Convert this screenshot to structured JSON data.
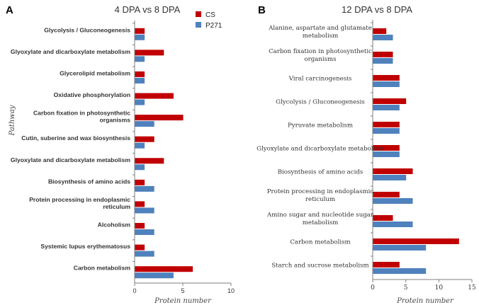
{
  "chart_data": [
    {
      "panel_label": "A",
      "type": "bar",
      "orientation": "horizontal",
      "title": "4 DPA vs 8 DPA",
      "xlabel": "Protein number",
      "ylabel": "Pathway",
      "xlim": [
        0,
        10
      ],
      "xticks": [
        0,
        5,
        10
      ],
      "legend_placement": "top-right",
      "categories": [
        "Glycolysis / Gluconeogenesis",
        "Glyoxylate and dicarboxylate metabolism",
        "Glycerolipid metabolism",
        "Oxidative phosphorylation",
        "Carbon fixation in photosynthetic organisms",
        "Cutin, suberine and wax biosynthesis",
        "Glyoxylate and dicarboxylate metabolism",
        "Biosynthesis of amino acids",
        "Protein processing in endoplasmic reticulum",
        "Alcoholism",
        "Systemic lupus erythematosus",
        "Carbon metabolism"
      ],
      "category_lines": [
        [
          "Glycolysis / Gluconeogenesis"
        ],
        [
          "Glyoxylate and dicarboxylate metabolism"
        ],
        [
          "Glycerolipid metabolism"
        ],
        [
          "Oxidative phosphorylation"
        ],
        [
          "Carbon fixation in photosynthetic",
          "organisms"
        ],
        [
          "Cutin, suberine and wax biosynthesis"
        ],
        [
          "Glyoxylate and dicarboxylate metabolism"
        ],
        [
          "Biosynthesis of amino acids"
        ],
        [
          "Protein processing in endoplasmic",
          "reticulum"
        ],
        [
          "Alcoholism"
        ],
        [
          "Systemic lupus erythematosus"
        ],
        [
          "Carbon metabolism"
        ]
      ],
      "series": [
        {
          "name": "CS",
          "color": "#c00000",
          "values": [
            1,
            3,
            1,
            4,
            5,
            2,
            3,
            1,
            1,
            1,
            1,
            6
          ]
        },
        {
          "name": "P271",
          "color": "#4f81bd",
          "values": [
            1,
            1,
            1,
            1,
            2,
            1,
            1,
            2,
            2,
            2,
            2,
            4
          ]
        }
      ]
    },
    {
      "panel_label": "B",
      "type": "bar",
      "orientation": "horizontal",
      "title": "12 DPA vs 8 DPA",
      "xlabel": "Protein number",
      "ylabel": "",
      "xlim": [
        0,
        15
      ],
      "xticks": [
        0,
        5,
        10,
        15
      ],
      "categories": [
        "Alanine, aspartate and glutamate metabolism",
        "Carbon fixation in photosynthetic organisms",
        "Viral carcinogenesis",
        "Glycolysis / Gluconeogenesis",
        "Pyruvate metabolism",
        "Glyoxylate and dicarboxylate metabolism",
        "Biosynthesis of amino acids",
        "Protein processing in endoplasmic reticulum",
        "Amino sugar and nucleotide sugar metabolism",
        "Carbon metabolism",
        "Starch and sucrose metabolism"
      ],
      "category_lines": [
        [
          "Alanine, aspartate and glutamate",
          "metabolism"
        ],
        [
          "Carbon fixation in photosynthetic",
          "organisms"
        ],
        [
          "Viral carcinogenesis"
        ],
        [
          "Glycolysis / Gluconeogenesis"
        ],
        [
          "Pyruvate metabolism"
        ],
        [
          "Glyoxylate and dicarboxylate metabolism"
        ],
        [
          "Biosynthesis of amino acids"
        ],
        [
          "Protein processing in endoplasmic",
          "reticulum"
        ],
        [
          "Amino sugar and nucleotide sugar",
          "metabolism"
        ],
        [
          "Carbon metabolism"
        ],
        [
          "Starch and sucrose metabolism"
        ]
      ],
      "series": [
        {
          "name": "CS",
          "color": "#c00000",
          "values": [
            2,
            3,
            4,
            5,
            4,
            4,
            6,
            4,
            3,
            13,
            4
          ]
        },
        {
          "name": "P271",
          "color": "#4f81bd",
          "values": [
            3,
            3,
            4,
            4,
            4,
            4,
            5,
            6,
            6,
            8,
            8
          ]
        }
      ]
    }
  ]
}
